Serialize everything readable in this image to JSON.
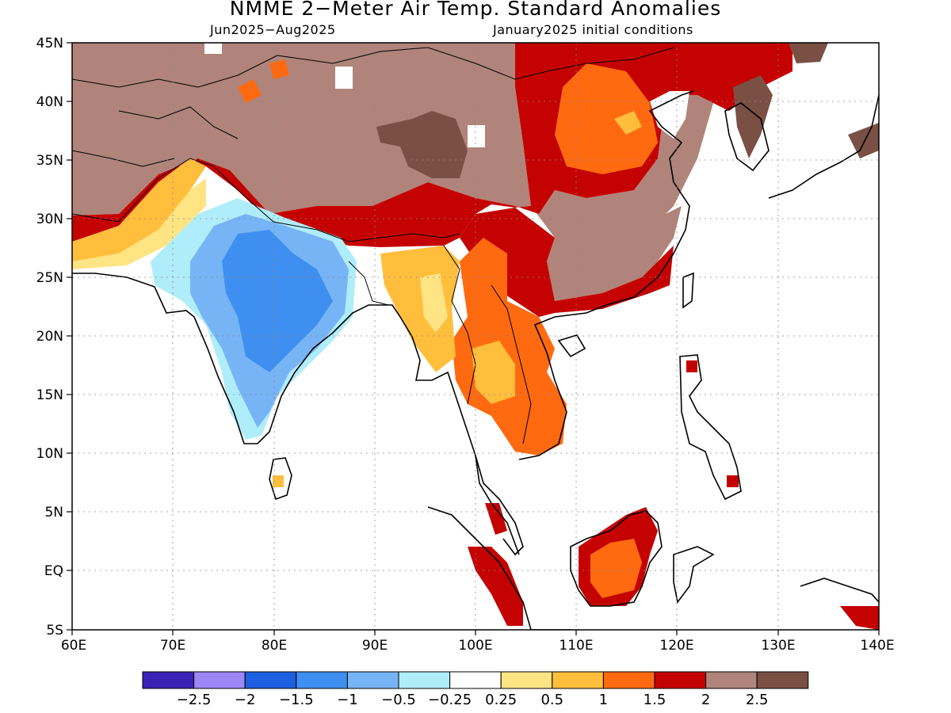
{
  "title": "NMME 2−Meter Air Temp. Standard Anomalies",
  "subtitle_left": "Jun2025−Aug2025",
  "subtitle_right": "January2025 initial conditions",
  "lat_labels": [
    "45N",
    "40N",
    "35N",
    "30N",
    "25N",
    "20N",
    "15N",
    "10N",
    "5N",
    "EQ",
    "5S"
  ],
  "lon_labels": [
    "60E",
    "70E",
    "80E",
    "90E",
    "100E",
    "110E",
    "120E",
    "130E",
    "140E"
  ],
  "colorbar": {
    "colors": [
      "#3a22b4",
      "#9a86f5",
      "#1d5fe0",
      "#3f8ff0",
      "#77b4f5",
      "#b0edfa",
      "#ffffff",
      "#ffe483",
      "#ffbe3c",
      "#ff6a10",
      "#c50202",
      "#b0847a",
      "#7a5045"
    ],
    "labels": [
      "−2.5",
      "−2",
      "−1.5",
      "−1",
      "−0.5",
      "−0.25",
      "0.25",
      "0.5",
      "1",
      "1.5",
      "2",
      "2.5"
    ]
  }
}
